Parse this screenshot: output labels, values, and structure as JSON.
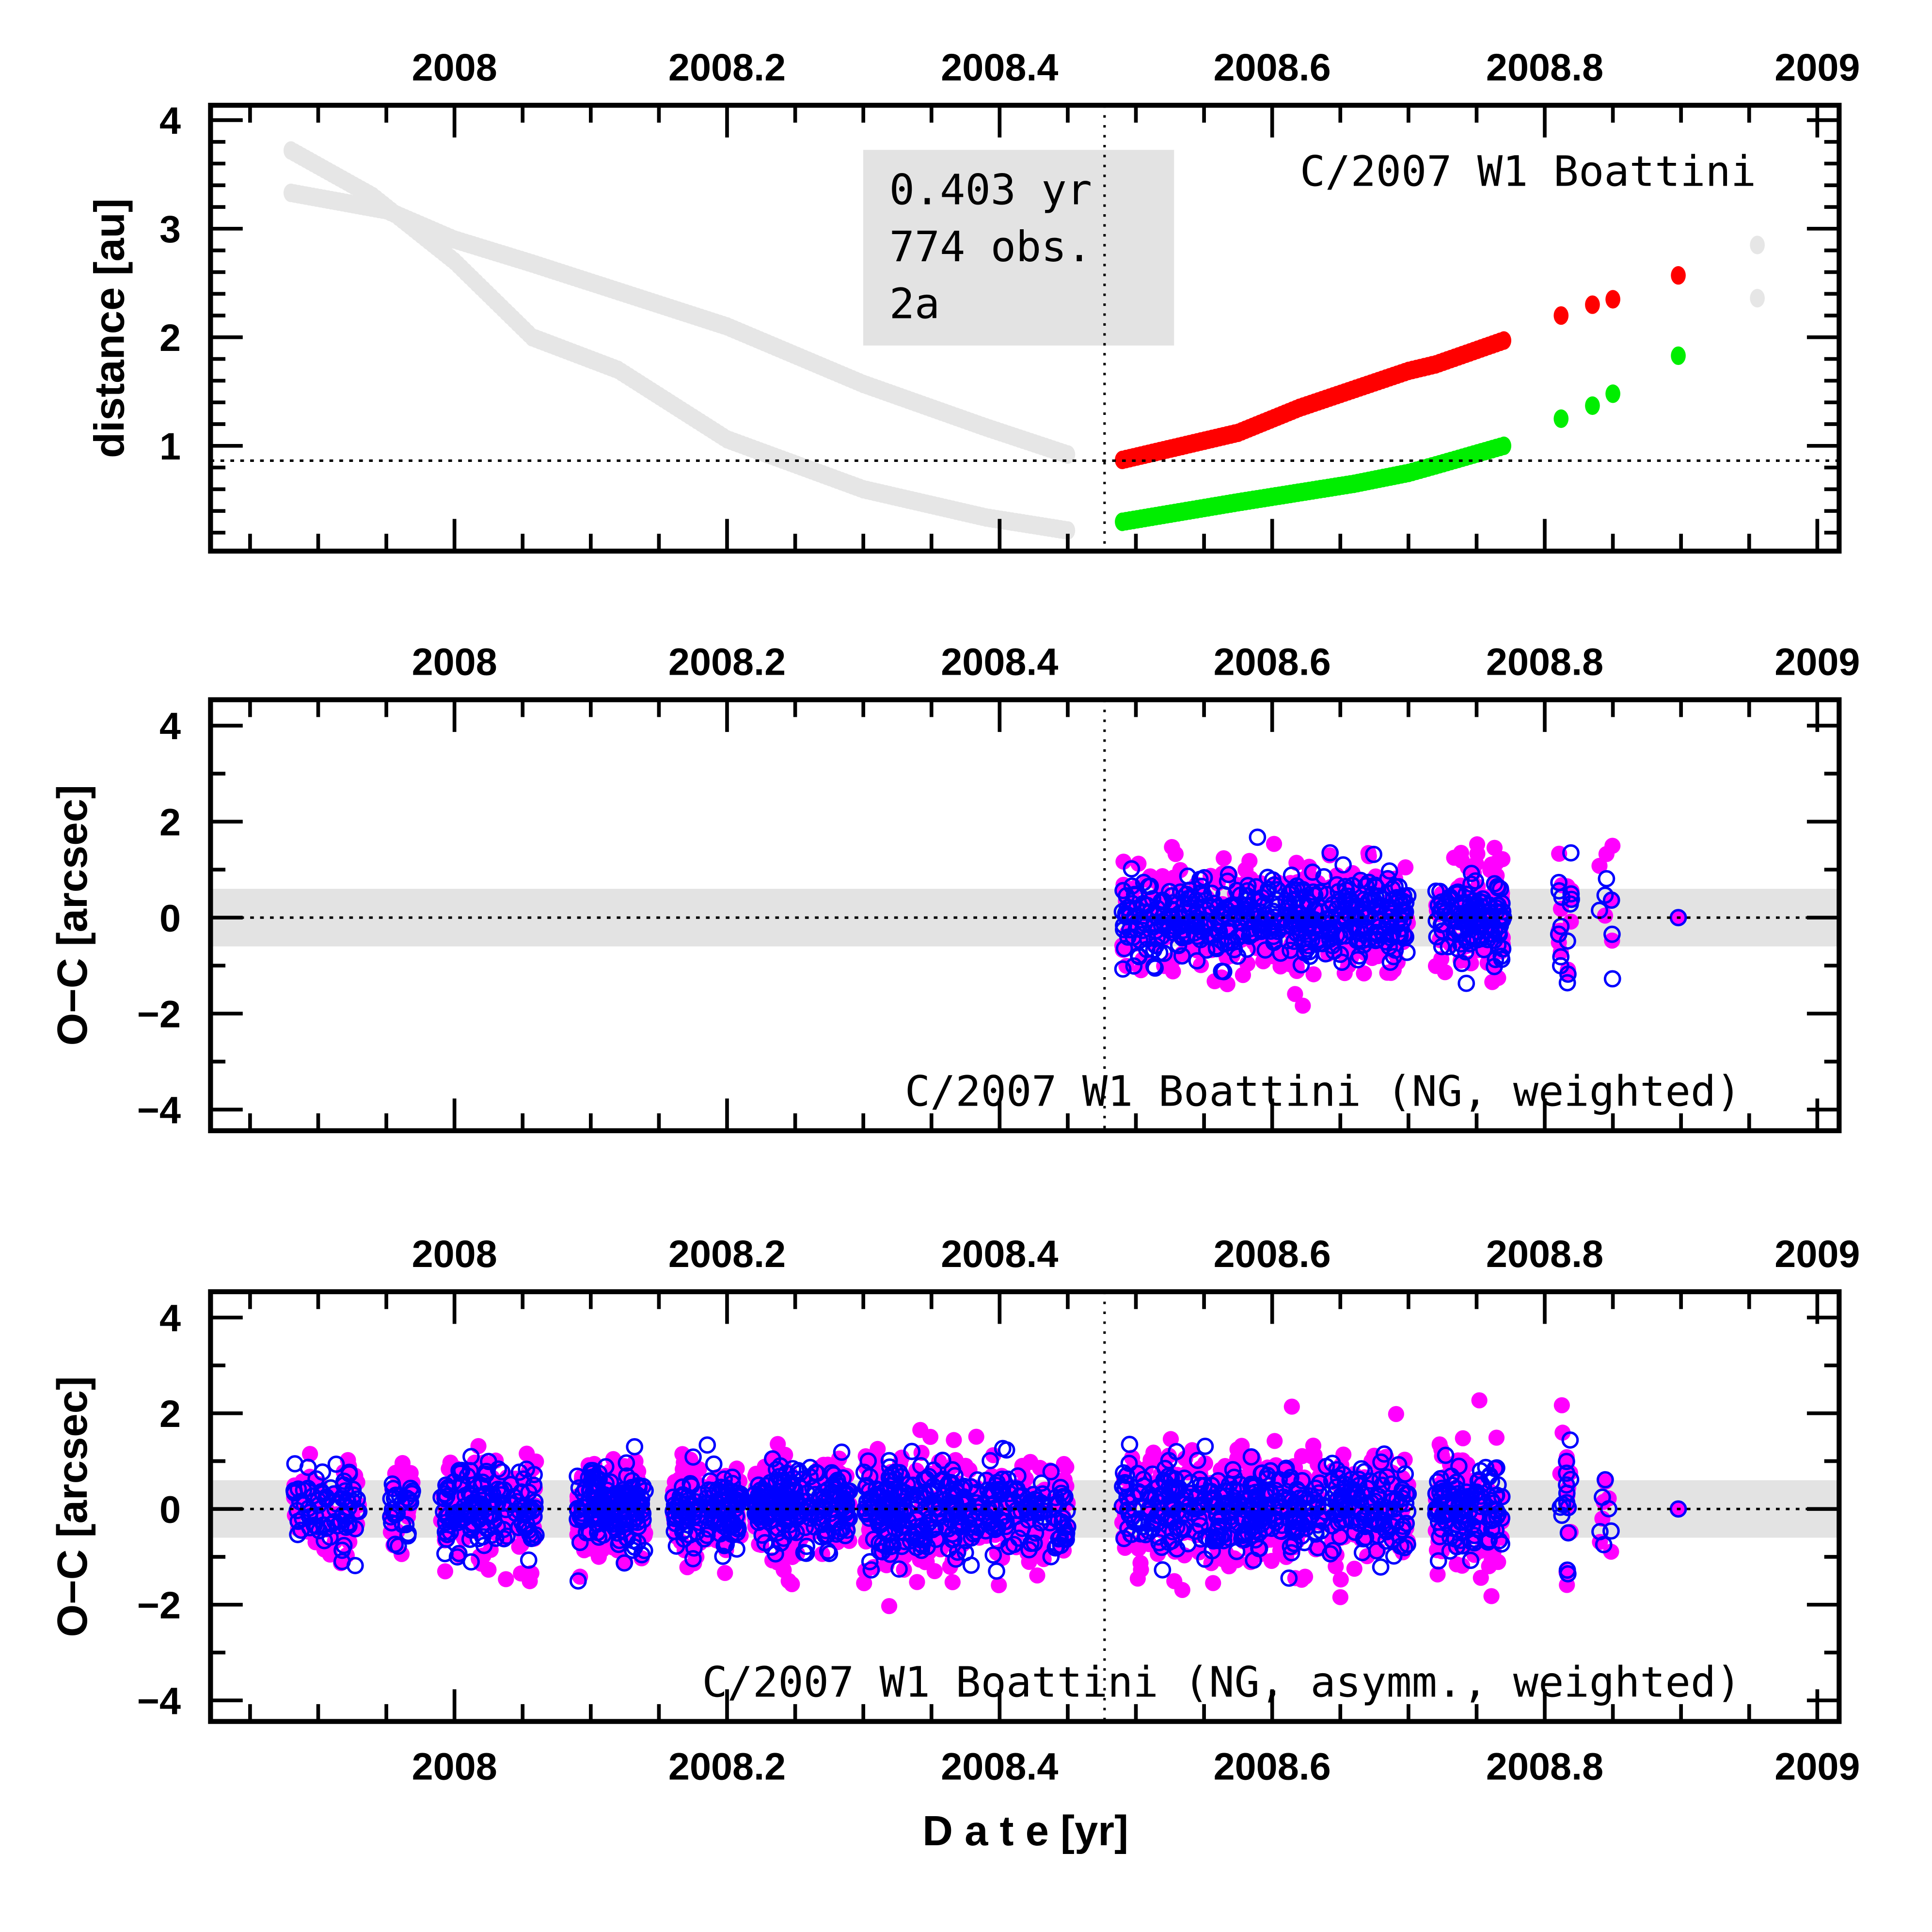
{
  "chart_data": [
    {
      "type": "scatter",
      "title": "C/2007 W1 Boattini",
      "xlabel": "",
      "ylabel": "distance [au]",
      "xlim": [
        2007.821,
        2009.016
      ],
      "ylim": [
        0.03,
        4.137
      ],
      "x_ticks": [
        "2008",
        "2008.2",
        "2008.4",
        "2008.6",
        "2008.8",
        "2009"
      ],
      "y_ticks": [
        "1",
        "2",
        "3",
        "4"
      ],
      "perihelion_line_x": 2008.477,
      "reference_line_y": 0.863,
      "info_box": [
        "0.403 yr",
        "774 obs.",
        "2a"
      ],
      "colors": {
        "unused": "#e6e6e6",
        "r": "#ff0000",
        "delta": "#00ee00"
      },
      "curves": {
        "unused_r": [
          [
            2007.88,
            3.33
          ],
          [
            2007.95,
            3.17
          ],
          [
            2008.0,
            2.9
          ],
          [
            2008.057,
            2.68
          ],
          [
            2008.2,
            2.1
          ],
          [
            2008.3,
            1.57
          ],
          [
            2008.39,
            1.17
          ],
          [
            2008.45,
            0.92
          ]
        ],
        "unused_delta": [
          [
            2007.88,
            3.72
          ],
          [
            2007.94,
            3.3
          ],
          [
            2008.0,
            2.7
          ],
          [
            2008.057,
            2.0
          ],
          [
            2008.12,
            1.7
          ],
          [
            2008.2,
            1.06
          ],
          [
            2008.3,
            0.6
          ],
          [
            2008.39,
            0.34
          ],
          [
            2008.45,
            0.22
          ]
        ],
        "r": [
          [
            2008.49,
            0.87
          ],
          [
            2008.575,
            1.12
          ],
          [
            2008.62,
            1.35
          ],
          [
            2008.7,
            1.69
          ],
          [
            2008.72,
            1.75
          ],
          [
            2008.77,
            1.97
          ]
        ],
        "delta": [
          [
            2008.49,
            0.3
          ],
          [
            2008.575,
            0.48
          ],
          [
            2008.66,
            0.65
          ],
          [
            2008.7,
            0.75
          ],
          [
            2008.72,
            0.82
          ],
          [
            2008.77,
            1.0
          ]
        ]
      },
      "points": {
        "r": [
          [
            2008.812,
            2.2
          ],
          [
            2008.835,
            2.3
          ],
          [
            2008.85,
            2.35
          ],
          [
            2008.898,
            2.57
          ]
        ],
        "delta": [
          [
            2008.812,
            1.25
          ],
          [
            2008.835,
            1.37
          ],
          [
            2008.85,
            1.48
          ],
          [
            2008.898,
            1.83
          ]
        ],
        "unused": [
          [
            2008.956,
            2.85
          ],
          [
            2008.956,
            2.36
          ]
        ]
      }
    },
    {
      "type": "scatter",
      "title": "C/2007 W1 Boattini (NG, weighted)",
      "ylabel": "O−C [arcsec]",
      "xlim": [
        2007.821,
        2009.016
      ],
      "ylim": [
        -4.44,
        4.54
      ],
      "x_ticks": [
        "2008",
        "2008.2",
        "2008.4",
        "2008.6",
        "2008.8",
        "2009"
      ],
      "y_ticks": [
        "−4",
        "−2",
        "0",
        "2",
        "4"
      ],
      "band": [
        -0.6,
        0.6
      ],
      "colors": {
        "ra": "#ff00ff",
        "dec": "#0000ff"
      },
      "groups": [
        [
          2008.49,
          2008.7,
          420,
          0.55
        ],
        [
          2008.72,
          2008.77,
          110,
          0.6
        ],
        [
          2008.81,
          2008.82,
          14,
          0.9
        ],
        [
          2008.84,
          2008.85,
          6,
          0.8
        ],
        [
          2008.898,
          2008.898,
          1,
          0.0
        ]
      ]
    },
    {
      "type": "scatter",
      "title": "C/2007 W1 Boattini (NG, asymm., weighted)",
      "ylabel": "O−C [arcsec]",
      "xlabel": "D a t e [yr]",
      "xlim": [
        2007.821,
        2009.016
      ],
      "ylim": [
        -4.44,
        4.54
      ],
      "x_ticks": [
        "2008",
        "2008.2",
        "2008.4",
        "2008.6",
        "2008.8",
        "2009"
      ],
      "y_ticks": [
        "−4",
        "−2",
        "0",
        "2",
        "4"
      ],
      "band": [
        -0.6,
        0.6
      ],
      "colors": {
        "ra": "#ff00ff",
        "dec": "#0000ff"
      },
      "groups": [
        [
          2007.88,
          2007.93,
          70,
          0.5
        ],
        [
          2007.95,
          2007.97,
          25,
          0.5
        ],
        [
          2007.99,
          2008.06,
          140,
          0.6
        ],
        [
          2008.09,
          2008.14,
          150,
          0.5
        ],
        [
          2008.16,
          2008.21,
          120,
          0.5
        ],
        [
          2008.22,
          2008.29,
          200,
          0.5
        ],
        [
          2008.3,
          2008.38,
          200,
          0.6
        ],
        [
          2008.38,
          2008.45,
          120,
          0.6
        ],
        [
          2008.49,
          2008.7,
          420,
          0.6
        ],
        [
          2008.72,
          2008.77,
          110,
          0.6
        ],
        [
          2008.81,
          2008.82,
          14,
          0.9
        ],
        [
          2008.84,
          2008.85,
          6,
          0.8
        ],
        [
          2008.898,
          2008.898,
          1,
          0.0
        ]
      ]
    }
  ]
}
